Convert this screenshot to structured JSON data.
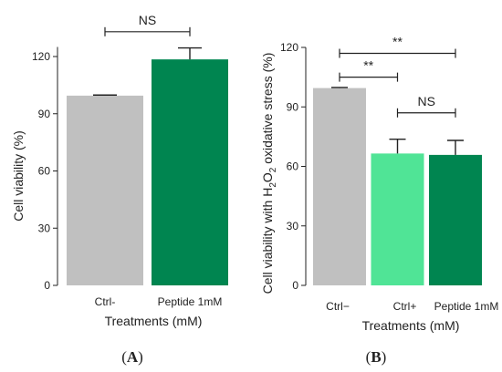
{
  "chart_data": [
    {
      "type": "bar",
      "panel": "A",
      "categories": [
        "Ctrl-",
        "Peptide 1mM"
      ],
      "values": [
        99.5,
        118.5
      ],
      "errors": [
        0.3,
        6.0
      ],
      "colors": [
        "#c0c0c0",
        "#008550"
      ],
      "xlabel": "Treatments (mM)",
      "ylabel": "Cell viability (%)",
      "ylim": [
        0,
        125
      ],
      "yticks": [
        0,
        30,
        60,
        90,
        120
      ],
      "grid": false,
      "significance": [
        {
          "from": 0,
          "to": 1,
          "label": "NS",
          "y": 133
        }
      ]
    },
    {
      "type": "bar",
      "panel": "B",
      "categories": [
        "Ctrl−",
        "Ctrl+",
        "Peptide 1mM"
      ],
      "values": [
        99.5,
        66.5,
        65.8
      ],
      "errors": [
        0.3,
        7.2,
        7.3
      ],
      "colors": [
        "#c0c0c0",
        "#50e496",
        "#008550"
      ],
      "xlabel": "Treatments (mM)",
      "ylabel_parts": [
        "Cell viability with H",
        "2",
        "O",
        "2",
        " oxidative stress (%)"
      ],
      "ylim": [
        0,
        120
      ],
      "yticks": [
        0,
        30,
        60,
        90,
        120
      ],
      "grid": false,
      "significance": [
        {
          "from": 0,
          "to": 2,
          "label": "**",
          "y": 117
        },
        {
          "from": 0,
          "to": 1,
          "label": "**",
          "y": 105
        },
        {
          "from": 1,
          "to": 2,
          "label": "NS",
          "y": 87
        }
      ]
    }
  ],
  "panel_labels": {
    "a_open": "(",
    "a_letter": "A",
    "a_close": ")",
    "b_open": "(",
    "b_letter": "B",
    "b_close": ")"
  }
}
